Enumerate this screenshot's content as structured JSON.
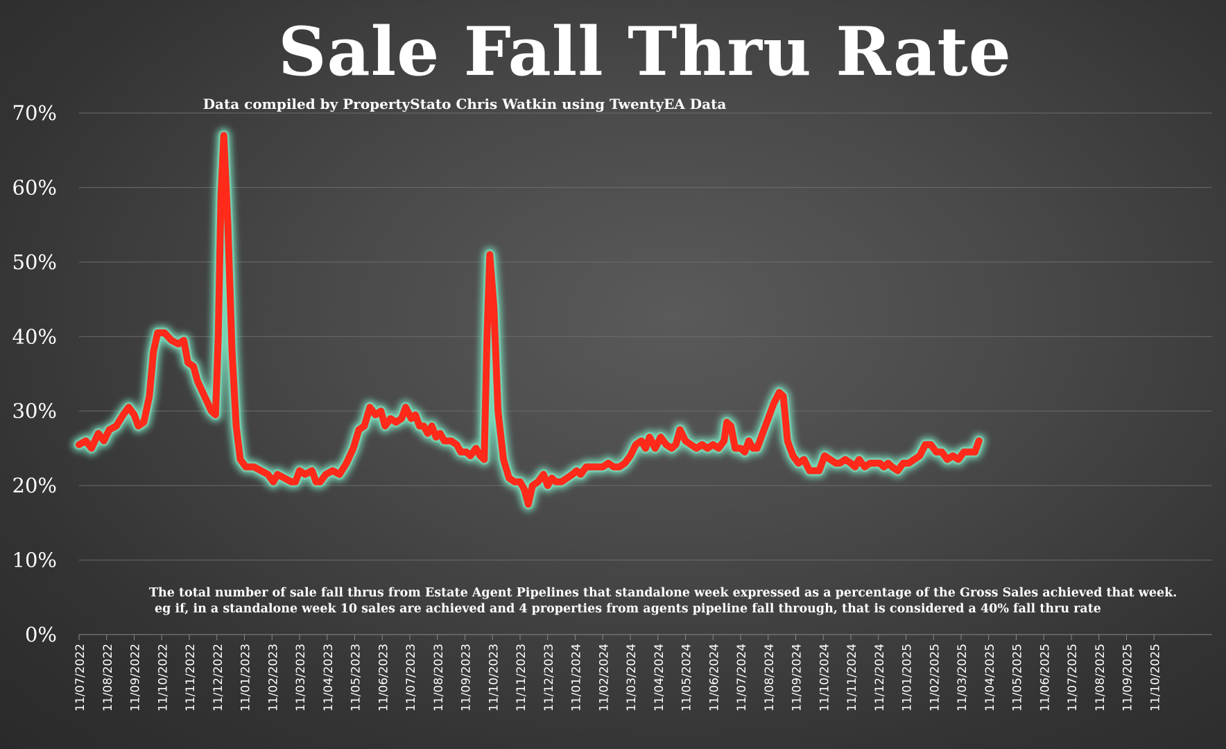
{
  "chart_data": {
    "type": "line",
    "title": "Sale Fall Thru Rate",
    "subtitle": "Data compiled by PropertyStato Chris Watkin using TwentyEA Data",
    "note": [
      "The total number of sale fall thrus from Estate Agent Pipelines that standalone week expressed as a percentage of the Gross Sales achieved that week.",
      "eg if, in a standalone week 10 sales are achieved and 4 properties from agents pipeline fall through, that is considered a 40%  fall thru rate"
    ],
    "xlabel": "",
    "ylabel": "",
    "ylim": [
      0,
      70
    ],
    "grid": true,
    "y_ticks": [
      "0%",
      "10%",
      "20%",
      "30%",
      "40%",
      "50%",
      "60%",
      "70%"
    ],
    "x_ticks": [
      "11/07/2022",
      "11/08/2022",
      "11/09/2022",
      "11/10/2022",
      "11/11/2022",
      "11/12/2022",
      "11/01/2023",
      "11/02/2023",
      "11/03/2023",
      "11/04/2023",
      "11/05/2023",
      "11/06/2023",
      "11/07/2023",
      "11/08/2023",
      "11/09/2023",
      "11/10/2023",
      "11/11/2023",
      "11/12/2023",
      "11/01/2024",
      "11/02/2024",
      "11/03/2024",
      "11/04/2024",
      "11/05/2024",
      "11/06/2024",
      "11/07/2024",
      "11/08/2024",
      "11/09/2024",
      "11/10/2024",
      "11/11/2024",
      "11/12/2024",
      "11/01/2025",
      "11/02/2025",
      "11/03/2025",
      "11/04/2025",
      "11/05/2025",
      "11/06/2025",
      "11/07/2025",
      "11/08/2025",
      "11/09/2025",
      "11/10/2025"
    ],
    "series": [
      {
        "color": "#ff2a1a",
        "glow": "#7be2c0",
        "points": [
          [
            0,
            25.5
          ],
          [
            0.25,
            26
          ],
          [
            0.45,
            25
          ],
          [
            0.7,
            27
          ],
          [
            0.9,
            26
          ],
          [
            1.1,
            27.5
          ],
          [
            1.35,
            28
          ],
          [
            1.6,
            29.5
          ],
          [
            1.8,
            30.5
          ],
          [
            2.0,
            29.5
          ],
          [
            2.15,
            28
          ],
          [
            2.35,
            28.5
          ],
          [
            2.55,
            32
          ],
          [
            2.7,
            38
          ],
          [
            2.85,
            40.5
          ],
          [
            3.1,
            40.5
          ],
          [
            3.35,
            39.5
          ],
          [
            3.6,
            39
          ],
          [
            3.8,
            39.5
          ],
          [
            3.95,
            36.5
          ],
          [
            4.15,
            36
          ],
          [
            4.3,
            34
          ],
          [
            4.55,
            32
          ],
          [
            4.8,
            30
          ],
          [
            4.95,
            29.5
          ],
          [
            5.05,
            40
          ],
          [
            5.15,
            59
          ],
          [
            5.25,
            67
          ],
          [
            5.4,
            55
          ],
          [
            5.55,
            38
          ],
          [
            5.7,
            28
          ],
          [
            5.85,
            23.5
          ],
          [
            6.05,
            22.5
          ],
          [
            6.35,
            22.5
          ],
          [
            6.6,
            22
          ],
          [
            6.85,
            21.5
          ],
          [
            7.05,
            20.5
          ],
          [
            7.2,
            21.5
          ],
          [
            7.45,
            21
          ],
          [
            7.7,
            20.5
          ],
          [
            7.85,
            20.5
          ],
          [
            8.0,
            22
          ],
          [
            8.2,
            21.5
          ],
          [
            8.45,
            22
          ],
          [
            8.6,
            20.5
          ],
          [
            8.75,
            20.5
          ],
          [
            8.95,
            21.5
          ],
          [
            9.2,
            22
          ],
          [
            9.45,
            21.5
          ],
          [
            9.7,
            23
          ],
          [
            9.95,
            25
          ],
          [
            10.15,
            27.5
          ],
          [
            10.35,
            28
          ],
          [
            10.55,
            30.5
          ],
          [
            10.75,
            29.5
          ],
          [
            10.95,
            30
          ],
          [
            11.1,
            28
          ],
          [
            11.3,
            29
          ],
          [
            11.5,
            28.5
          ],
          [
            11.7,
            29
          ],
          [
            11.85,
            30.5
          ],
          [
            12.05,
            29
          ],
          [
            12.2,
            29.5
          ],
          [
            12.35,
            28
          ],
          [
            12.5,
            28
          ],
          [
            12.65,
            27
          ],
          [
            12.8,
            28
          ],
          [
            12.95,
            26.5
          ],
          [
            13.1,
            27
          ],
          [
            13.25,
            26
          ],
          [
            13.5,
            26
          ],
          [
            13.7,
            25.5
          ],
          [
            13.85,
            24.5
          ],
          [
            14.05,
            24.5
          ],
          [
            14.2,
            24
          ],
          [
            14.4,
            25
          ],
          [
            14.55,
            24
          ],
          [
            14.7,
            23.5
          ],
          [
            14.8,
            40
          ],
          [
            14.9,
            51
          ],
          [
            15.05,
            44
          ],
          [
            15.2,
            30
          ],
          [
            15.4,
            23.5
          ],
          [
            15.6,
            21
          ],
          [
            15.8,
            20.5
          ],
          [
            16.0,
            20.5
          ],
          [
            16.15,
            19.5
          ],
          [
            16.3,
            17.5
          ],
          [
            16.45,
            20
          ],
          [
            16.65,
            20.5
          ],
          [
            16.85,
            21.5
          ],
          [
            17.0,
            20
          ],
          [
            17.15,
            21
          ],
          [
            17.3,
            20.5
          ],
          [
            17.5,
            20.5
          ],
          [
            17.7,
            21
          ],
          [
            17.9,
            21.5
          ],
          [
            18.05,
            22
          ],
          [
            18.2,
            21.5
          ],
          [
            18.4,
            22.5
          ],
          [
            18.6,
            22.5
          ],
          [
            18.8,
            22.5
          ],
          [
            19.0,
            22.5
          ],
          [
            19.2,
            23
          ],
          [
            19.4,
            22.5
          ],
          [
            19.6,
            22.5
          ],
          [
            19.8,
            23
          ],
          [
            20.0,
            24
          ],
          [
            20.2,
            25.5
          ],
          [
            20.4,
            26
          ],
          [
            20.55,
            25
          ],
          [
            20.7,
            26.5
          ],
          [
            20.9,
            25
          ],
          [
            21.1,
            26.5
          ],
          [
            21.3,
            25.5
          ],
          [
            21.5,
            25
          ],
          [
            21.65,
            25.5
          ],
          [
            21.8,
            27.5
          ],
          [
            22.0,
            26
          ],
          [
            22.2,
            25.5
          ],
          [
            22.4,
            25
          ],
          [
            22.6,
            25.5
          ],
          [
            22.8,
            25
          ],
          [
            23.0,
            25.5
          ],
          [
            23.2,
            25
          ],
          [
            23.4,
            26
          ],
          [
            23.5,
            28.5
          ],
          [
            23.65,
            28
          ],
          [
            23.8,
            25
          ],
          [
            24.0,
            25
          ],
          [
            24.15,
            24.5
          ],
          [
            24.3,
            26
          ],
          [
            24.45,
            25
          ],
          [
            24.6,
            25
          ],
          [
            24.8,
            27
          ],
          [
            25.0,
            29
          ],
          [
            25.2,
            31
          ],
          [
            25.4,
            32.5
          ],
          [
            25.55,
            32
          ],
          [
            25.7,
            26
          ],
          [
            25.9,
            24
          ],
          [
            26.1,
            23
          ],
          [
            26.3,
            23.5
          ],
          [
            26.5,
            22
          ],
          [
            26.7,
            22
          ],
          [
            26.85,
            22
          ],
          [
            27.05,
            24
          ],
          [
            27.25,
            23.5
          ],
          [
            27.45,
            23
          ],
          [
            27.6,
            23
          ],
          [
            27.8,
            23.5
          ],
          [
            28.0,
            23
          ],
          [
            28.15,
            22.5
          ],
          [
            28.3,
            23.5
          ],
          [
            28.5,
            22.5
          ],
          [
            28.7,
            23
          ],
          [
            28.85,
            23
          ],
          [
            29.05,
            23
          ],
          [
            29.2,
            22.5
          ],
          [
            29.35,
            23
          ],
          [
            29.5,
            22.5
          ],
          [
            29.7,
            22
          ],
          [
            29.9,
            23
          ],
          [
            30.1,
            23
          ],
          [
            30.3,
            23.5
          ],
          [
            30.5,
            24
          ],
          [
            30.7,
            25.5
          ],
          [
            30.9,
            25.5
          ],
          [
            31.1,
            24.5
          ],
          [
            31.3,
            24.5
          ],
          [
            31.5,
            23.5
          ],
          [
            31.7,
            24
          ],
          [
            31.9,
            23.5
          ],
          [
            32.1,
            24.5
          ],
          [
            32.3,
            24.5
          ],
          [
            32.5,
            24.5
          ],
          [
            32.65,
            26
          ]
        ]
      }
    ]
  }
}
